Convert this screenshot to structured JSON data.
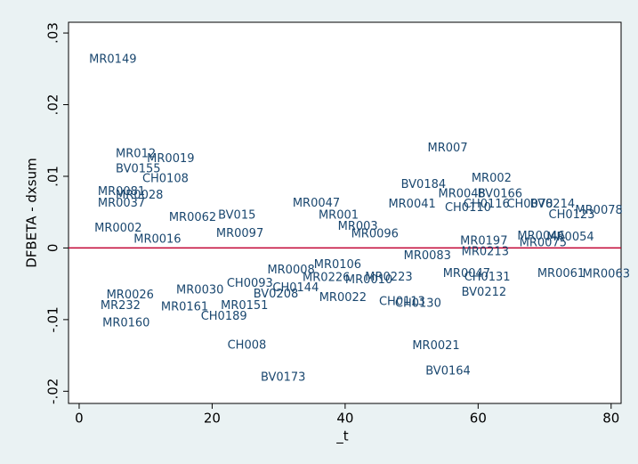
{
  "chart_data": {
    "type": "scatter",
    "x_label": "_t",
    "y_label": "DFBETA - dxsum",
    "xlim": [
      -1.6,
      81.5
    ],
    "ylim": [
      -0.0217,
      0.0315
    ],
    "xticks": [
      0,
      20,
      40,
      60,
      80
    ],
    "yticks": [
      {
        "value": -0.02,
        "label": "-.02"
      },
      {
        "value": -0.01,
        "label": "-.01"
      },
      {
        "value": 0,
        "label": "0"
      },
      {
        "value": 0.01,
        "label": ".01"
      },
      {
        "value": 0.02,
        "label": ".02"
      },
      {
        "value": 0.03,
        "label": ".03"
      }
    ],
    "yline": 0,
    "yline_color": "#c10534",
    "color": "#1a476f",
    "labels": [
      "MR0149",
      "MR012",
      "MR0019",
      "BV0155",
      "CH0108",
      "MR007",
      "MR002",
      "BV0184",
      "MR0048",
      "BV0166",
      "MR0041",
      "CH0116",
      "CH0110",
      "CH0078",
      "BV0214",
      "CH0123",
      "MR0078",
      "MR0047",
      "MR001",
      "MR003",
      "MR0046",
      "MR0054",
      "MR0075",
      "MR0083",
      "MR0213",
      "MR0197",
      "MR0061",
      "MR0063",
      "CH0131",
      "MR0047",
      "BV0212",
      "MR0022",
      "CH0113",
      "CH0130",
      "MR232",
      "MR0161",
      "MR0151",
      "CH0189",
      "MR0160",
      "CH008",
      "MR0021",
      "BV0164",
      "BV0173",
      "BV0208",
      "MR0010",
      "MR0223",
      "MR0226",
      "MR0096",
      "BV015",
      "MR0081",
      "MR0028",
      "MR0037",
      "MR0002",
      "MR0062",
      "MR0016",
      "CH0144",
      "MR0030",
      "MR0026",
      "CH0093",
      "MR0106",
      "MR0008",
      "MR0097"
    ],
    "x": [
      1.5,
      5.5,
      10.2,
      5.5,
      9.5,
      52.4,
      59.0,
      48.4,
      54.0,
      59.9,
      46.5,
      57.8,
      55.0,
      64.3,
      67.8,
      70.6,
      74.6,
      32.1,
      36.0,
      38.9,
      65.9,
      70.3,
      66.2,
      48.8,
      57.5,
      57.3,
      68.9,
      75.7,
      57.9,
      54.7,
      57.5,
      36.1,
      45.1,
      47.5,
      3.2,
      12.3,
      21.3,
      18.3,
      3.5,
      22.3,
      50.1,
      52.1,
      27.3,
      26.2,
      40.0,
      43.0,
      33.6,
      40.9,
      20.9,
      2.8,
      5.5,
      2.8,
      2.3,
      13.5,
      8.2,
      29.1,
      14.6,
      4.1,
      22.2,
      35.3,
      28.3,
      20.6
    ],
    "y": [
      0.0263,
      0.0131,
      0.0124,
      0.011,
      0.0096,
      0.0139,
      0.0097,
      0.0088,
      0.0075,
      0.0075,
      0.0061,
      0.0061,
      0.0056,
      0.0061,
      0.0061,
      0.0046,
      0.0052,
      0.0062,
      0.0045,
      0.003,
      0.0016,
      0.0015,
      0.0007,
      -0.0011,
      -0.0006,
      0.0009,
      -0.0036,
      -0.0037,
      -0.0041,
      -0.0036,
      -0.0062,
      -0.007,
      -0.0075,
      -0.0078,
      -0.0081,
      -0.0083,
      -0.0081,
      -0.0096,
      -0.0105,
      -0.0136,
      -0.0137,
      -0.0172,
      -0.0181,
      -0.0065,
      -0.0045,
      -0.0041,
      -0.0042,
      0.0019,
      0.0045,
      0.0078,
      0.0073,
      0.0062,
      0.0027,
      0.0042,
      0.0012,
      -0.0056,
      -0.0059,
      -0.0066,
      -0.005,
      -0.0024,
      -0.0031,
      0.002
    ]
  }
}
